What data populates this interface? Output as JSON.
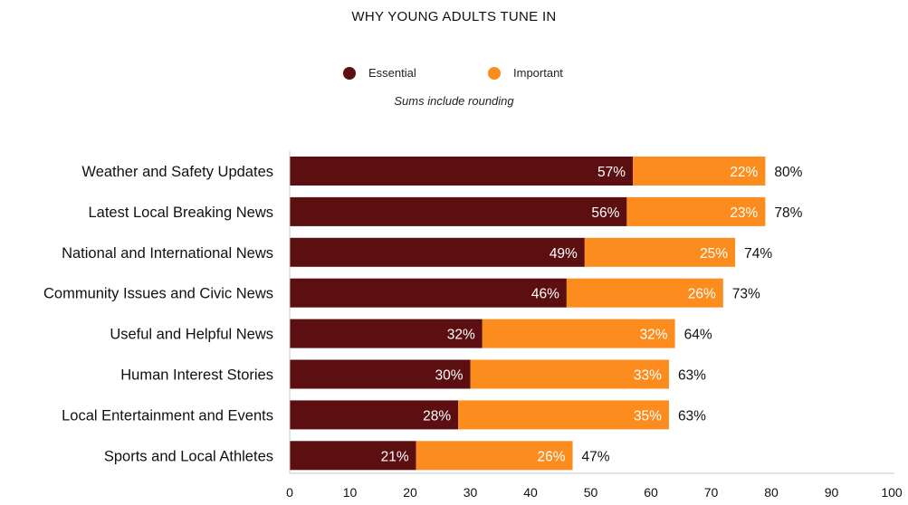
{
  "chart_data": {
    "type": "bar",
    "orientation": "horizontal",
    "stacked": true,
    "title": "WHY YOUNG ADULTS TUNE IN",
    "note": "Sums include rounding",
    "categories": [
      "Weather and Safety Updates",
      "Latest Local Breaking News",
      "National and International News",
      "Community Issues and Civic News",
      "Useful and Helpful News",
      "Human Interest Stories",
      "Local Entertainment and Events",
      "Sports and Local Athletes"
    ],
    "series": [
      {
        "name": "Essential",
        "color": "#5c0f10",
        "values": [
          57,
          56,
          49,
          46,
          32,
          30,
          28,
          21
        ]
      },
      {
        "name": "Important",
        "color": "#fd8c1f",
        "values": [
          22,
          23,
          25,
          26,
          32,
          33,
          35,
          26
        ]
      }
    ],
    "totals": [
      80,
      78,
      74,
      73,
      64,
      63,
      63,
      47
    ],
    "xlim": [
      0,
      100
    ],
    "xticks": [
      0,
      10,
      20,
      30,
      40,
      50,
      60,
      70,
      80,
      90,
      100
    ],
    "grid": false,
    "legend_position": "top-center"
  }
}
